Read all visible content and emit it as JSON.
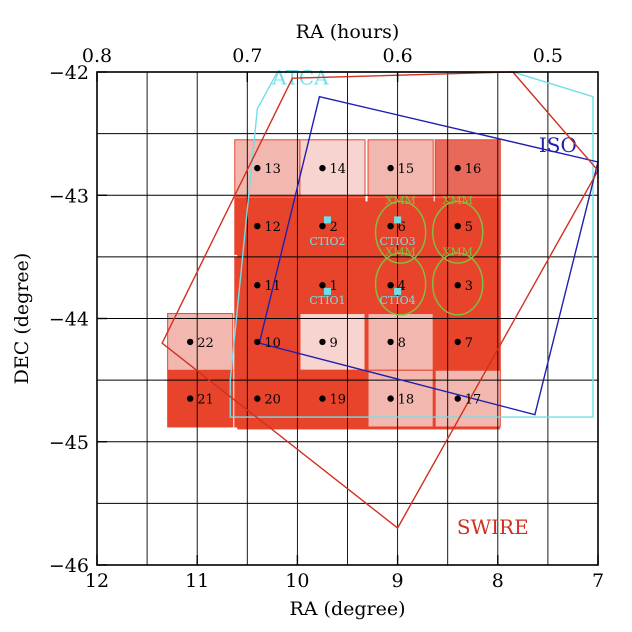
{
  "chart_data": {
    "type": "scatter",
    "xlabel": "RA (degree)",
    "ylabel": "DEC (degree)",
    "top_axis_label": "RA (hours)",
    "xlim": [
      12,
      7
    ],
    "ylim": [
      -46,
      -42
    ],
    "x_ticks": [
      12,
      11,
      10,
      9,
      8,
      7
    ],
    "y_ticks": [
      -46,
      -45,
      -44,
      -43,
      -42
    ],
    "top_ticks": [
      0.8,
      0.7,
      0.6,
      0.5
    ],
    "grid": true,
    "colors": {
      "deep": "#e8442c",
      "medium": "#e8685a",
      "light": "#f2b8b0",
      "pale": "#f7d4cf",
      "atca": "#6fe0e8",
      "iso": "#2020b0",
      "swire": "#d03020",
      "xmm": "#80c040",
      "ctio": "#6fe0e8"
    },
    "fields": [
      {
        "id": "1",
        "ra": 9.65,
        "dec": -43.73,
        "depth": "deep"
      },
      {
        "id": "2",
        "ra": 9.65,
        "dec": -43.25,
        "depth": "deep"
      },
      {
        "id": "3",
        "ra": 8.3,
        "dec": -43.73,
        "depth": "deep"
      },
      {
        "id": "4",
        "ra": 8.97,
        "dec": -43.73,
        "depth": "deep"
      },
      {
        "id": "5",
        "ra": 8.3,
        "dec": -43.25,
        "depth": "deep"
      },
      {
        "id": "6",
        "ra": 8.97,
        "dec": -43.25,
        "depth": "deep"
      },
      {
        "id": "7",
        "ra": 8.3,
        "dec": -44.19,
        "depth": "deep"
      },
      {
        "id": "8",
        "ra": 8.97,
        "dec": -44.19,
        "depth": "light"
      },
      {
        "id": "9",
        "ra": 9.65,
        "dec": -44.19,
        "depth": "pale"
      },
      {
        "id": "10",
        "ra": 10.3,
        "dec": -44.19,
        "depth": "deep"
      },
      {
        "id": "11",
        "ra": 10.3,
        "dec": -43.73,
        "depth": "deep"
      },
      {
        "id": "12",
        "ra": 10.3,
        "dec": -43.25,
        "depth": "deep"
      },
      {
        "id": "13",
        "ra": 10.3,
        "dec": -42.78,
        "depth": "light"
      },
      {
        "id": "14",
        "ra": 9.65,
        "dec": -42.78,
        "depth": "pale"
      },
      {
        "id": "15",
        "ra": 8.97,
        "dec": -42.78,
        "depth": "light"
      },
      {
        "id": "16",
        "ra": 8.3,
        "dec": -42.78,
        "depth": "medium"
      },
      {
        "id": "17",
        "ra": 8.3,
        "dec": -44.65,
        "depth": "light"
      },
      {
        "id": "18",
        "ra": 8.97,
        "dec": -44.65,
        "depth": "light"
      },
      {
        "id": "19",
        "ra": 9.65,
        "dec": -44.65,
        "depth": "deep"
      },
      {
        "id": "20",
        "ra": 10.3,
        "dec": -44.65,
        "depth": "deep"
      },
      {
        "id": "21",
        "ra": 10.97,
        "dec": -44.65,
        "depth": "deep"
      },
      {
        "id": "22",
        "ra": 10.97,
        "dec": -44.19,
        "depth": "light"
      }
    ],
    "deep_region": {
      "ra": [
        10.6,
        7.98
      ],
      "dec": [
        -43.05,
        -44.9
      ]
    },
    "xmm_fields": [
      {
        "label": "XMM",
        "ra": 8.97,
        "dec": -43.3
      },
      {
        "label": "XMM",
        "ra": 8.4,
        "dec": -43.3
      },
      {
        "label": "XMM",
        "ra": 8.97,
        "dec": -43.72
      },
      {
        "label": "XMM",
        "ra": 8.4,
        "dec": -43.72
      }
    ],
    "xmm_radius_deg": 0.25,
    "ctio_fields": [
      {
        "label": "CTIO1",
        "ra": 9.7,
        "dec": -43.78,
        "label_dec": -43.86
      },
      {
        "label": "CTIO2",
        "ra": 9.7,
        "dec": -43.2,
        "label_dec": -43.38
      },
      {
        "label": "CTIO3",
        "ra": 9.0,
        "dec": -43.2,
        "label_dec": -43.38
      },
      {
        "label": "CTIO4",
        "ra": 9.0,
        "dec": -43.78,
        "label_dec": -43.86
      }
    ],
    "overlays": [
      {
        "name": "ATCA",
        "label_ra": 9.97,
        "label_dec": -42.1,
        "points": [
          [
            10.4,
            -42.3
          ],
          [
            10.2,
            -42.0
          ],
          [
            7.85,
            -42.0
          ],
          [
            7.05,
            -42.2
          ],
          [
            7.05,
            -44.8
          ],
          [
            10.67,
            -44.8
          ],
          [
            10.67,
            -44.5
          ]
        ]
      },
      {
        "name": "ISO",
        "label_ra": 7.4,
        "label_dec": -42.65,
        "points": [
          [
            9.78,
            -42.2
          ],
          [
            7.0,
            -42.73
          ],
          [
            7.63,
            -44.78
          ],
          [
            10.38,
            -44.2
          ]
        ]
      },
      {
        "name": "SWIRE",
        "label_ra": 8.05,
        "label_dec": -45.75,
        "points": [
          [
            10.05,
            -42.05
          ],
          [
            7.85,
            -42.0
          ],
          [
            7.0,
            -42.8
          ],
          [
            9.0,
            -45.7
          ],
          [
            11.35,
            -44.2
          ]
        ]
      }
    ]
  }
}
